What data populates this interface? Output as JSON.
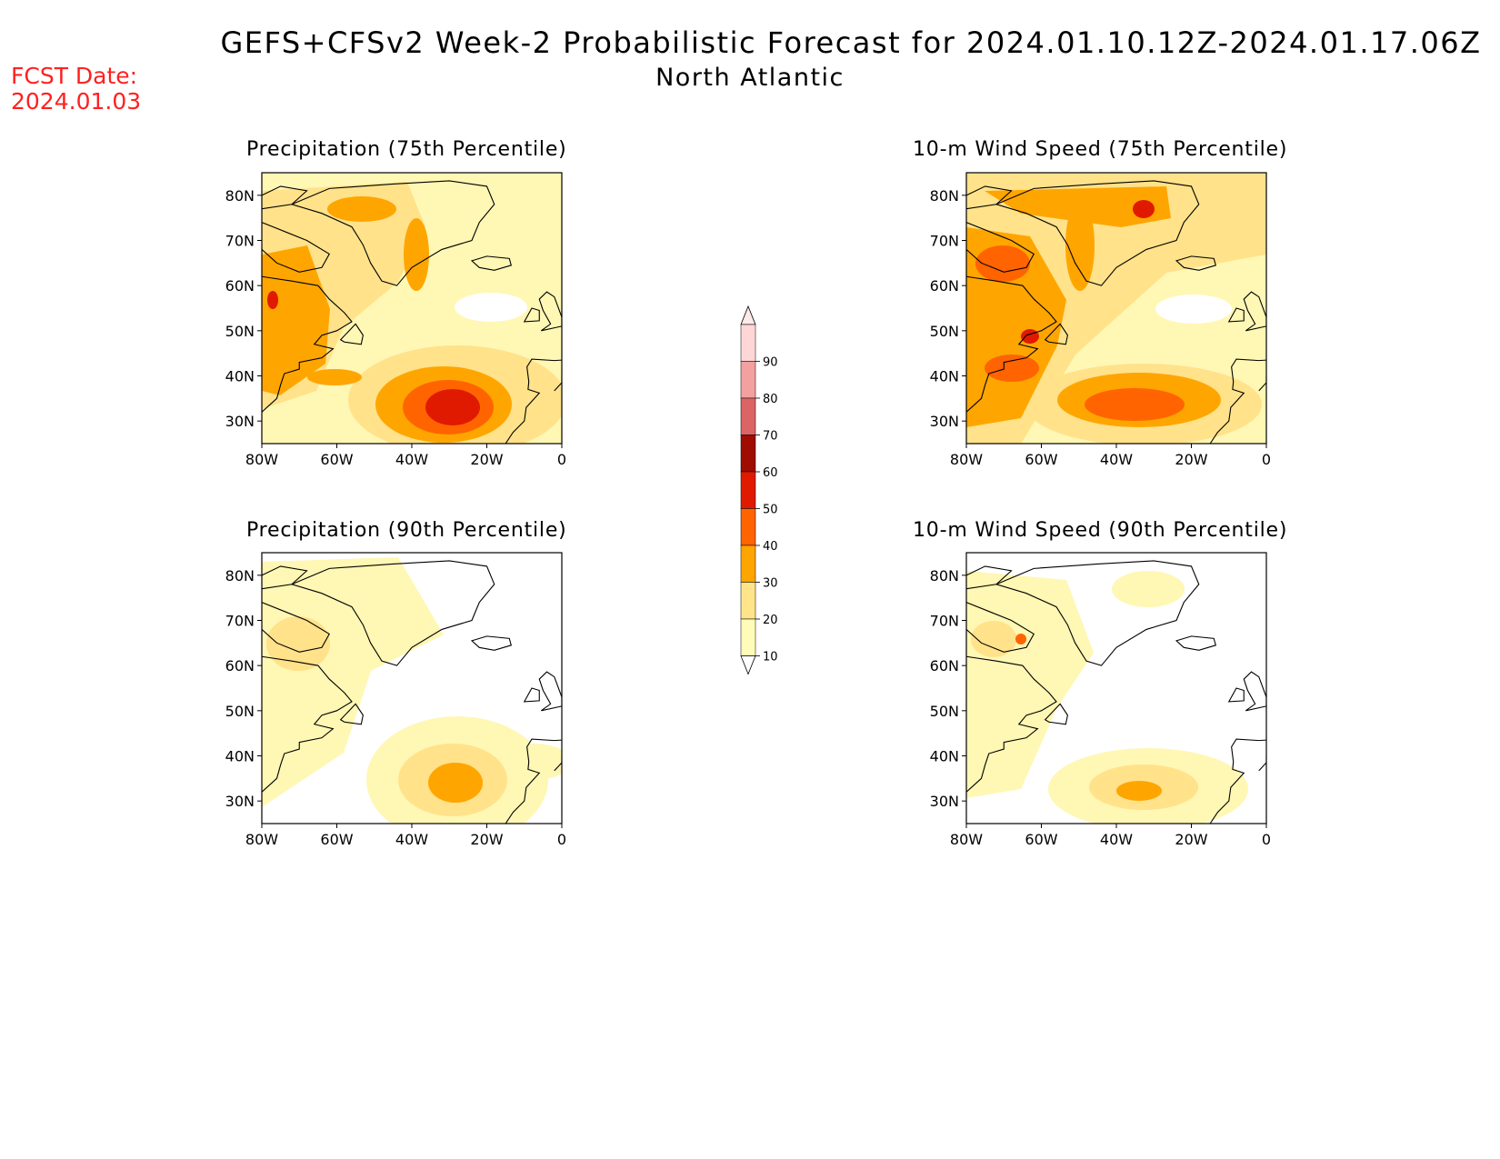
{
  "title": {
    "line1": "GEFS+CFSv2 Week-2 Probabilistic Forecast for 2024.01.10.12Z-2024.01.17.06Z",
    "line2": "North Atlantic"
  },
  "fcst_date": {
    "label": "FCST Date:",
    "value": "2024.01.03"
  },
  "panels": {
    "precip75": {
      "title": "Precipitation (75th Percentile)"
    },
    "wind75": {
      "title": "10-m Wind Speed (75th Percentile)"
    },
    "precip90": {
      "title": "Precipitation (90th Percentile)"
    },
    "wind90": {
      "title": "10-m Wind Speed (90th Percentile)"
    }
  },
  "map_axes": {
    "lat_ticks": [
      "80N",
      "70N",
      "60N",
      "50N",
      "40N",
      "30N"
    ],
    "lon_ticks": [
      "80W",
      "60W",
      "40W",
      "20W",
      "0"
    ]
  },
  "colorbar": {
    "levels": [
      "10",
      "20",
      "30",
      "40",
      "50",
      "60",
      "70",
      "80",
      "90"
    ],
    "colors": [
      "#fffbb8",
      "#ffe48a",
      "#ffa500",
      "#ff6400",
      "#e01a00",
      "#a00c00",
      "#dc6464",
      "#f2a0a0",
      "#ffd6d6"
    ]
  },
  "colors": {
    "title": "#000000",
    "fcst_date": "#ff2020",
    "light": "#fff7b4",
    "mid": "#ffe28a",
    "orange": "#ffa500",
    "dark_orange": "#ff6400",
    "red": "#e01a00"
  }
}
